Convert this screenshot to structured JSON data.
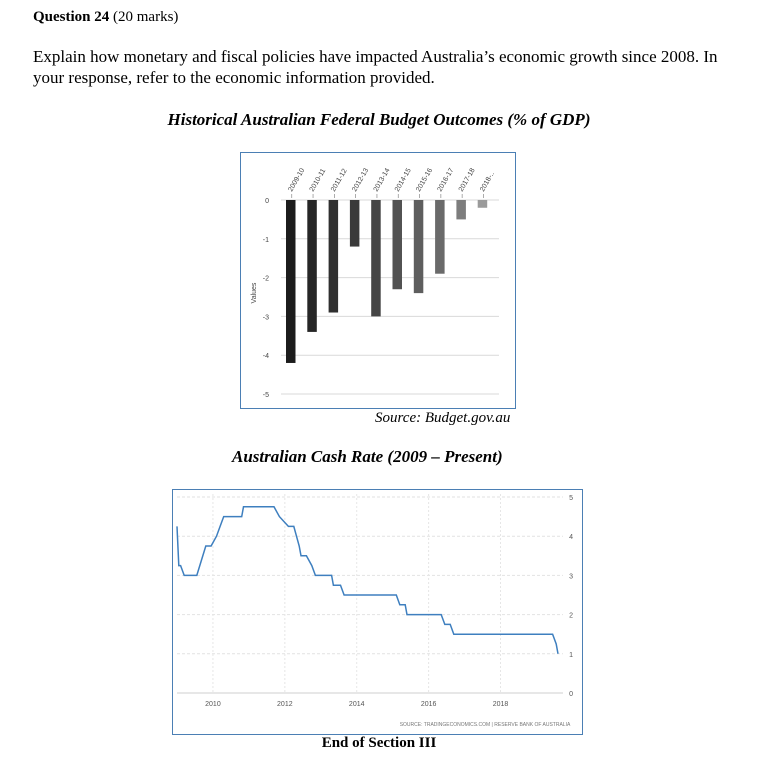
{
  "question": {
    "label": "Question 24",
    "marks": "(20 marks)",
    "text": "Explain how monetary and fiscal policies have impacted Australia’s economic growth since 2008. In your response, refer to the economic information provided."
  },
  "budget_source": "Source: Budget.gov.au",
  "footer": "End of Section III",
  "chart_data": [
    {
      "type": "bar",
      "title": "Historical Australian Federal Budget Outcomes (% of GDP)",
      "ylabel": "Values",
      "categories": [
        "2009-10",
        "2010-11",
        "2011-12",
        "2012-13",
        "2013-14",
        "2014-15",
        "2015-16",
        "2016-17",
        "2017-18",
        "2018-.."
      ],
      "values": [
        -4.2,
        -3.4,
        -2.9,
        -1.2,
        -3.0,
        -2.3,
        -2.4,
        -1.9,
        -0.5,
        -0.2
      ],
      "colors": [
        "#1c1c1c",
        "#262626",
        "#303030",
        "#3a3a3a",
        "#454545",
        "#525252",
        "#5e5e5e",
        "#6a6a6a",
        "#7d7d7d",
        "#9a9a9a"
      ],
      "yticks": [
        "0",
        "-1",
        "-2",
        "-3",
        "-4",
        "-5"
      ],
      "ylim": [
        -5,
        0
      ],
      "grid": true
    },
    {
      "type": "line",
      "title": "Australian Cash Rate (2009 – Present)",
      "xticks": [
        "2010",
        "2012",
        "2014",
        "2016",
        "2018"
      ],
      "yticks": [
        "0",
        "1",
        "2",
        "3",
        "4",
        "5"
      ],
      "xlim": [
        2009.0,
        2019.6
      ],
      "ylim": [
        0,
        5
      ],
      "color": "#3e7fbf",
      "source": "SOURCE: TRADINGECONOMICS.COM | RESERVE BANK OF AUSTRALIA",
      "series": [
        {
          "x": [
            2009.0,
            2009.05,
            2009.1,
            2009.2,
            2009.55,
            2009.8,
            2009.95,
            2010.1,
            2010.2,
            2010.3,
            2010.8,
            2010.85,
            2011.7,
            2011.85,
            2012.1,
            2012.25,
            2012.4,
            2012.45,
            2012.6,
            2012.75,
            2012.85,
            2013.3,
            2013.35,
            2013.55,
            2013.65,
            2015.1,
            2015.2,
            2015.35,
            2015.4,
            2016.35,
            2016.45,
            2016.6,
            2016.7,
            2019.45,
            2019.55,
            2019.6
          ],
          "y": [
            4.25,
            3.25,
            3.25,
            3.0,
            3.0,
            3.75,
            3.75,
            4.0,
            4.25,
            4.5,
            4.5,
            4.75,
            4.75,
            4.5,
            4.25,
            4.25,
            3.75,
            3.5,
            3.5,
            3.25,
            3.0,
            3.0,
            2.75,
            2.75,
            2.5,
            2.5,
            2.25,
            2.25,
            2.0,
            2.0,
            1.75,
            1.75,
            1.5,
            1.5,
            1.25,
            1.0
          ]
        }
      ]
    }
  ]
}
